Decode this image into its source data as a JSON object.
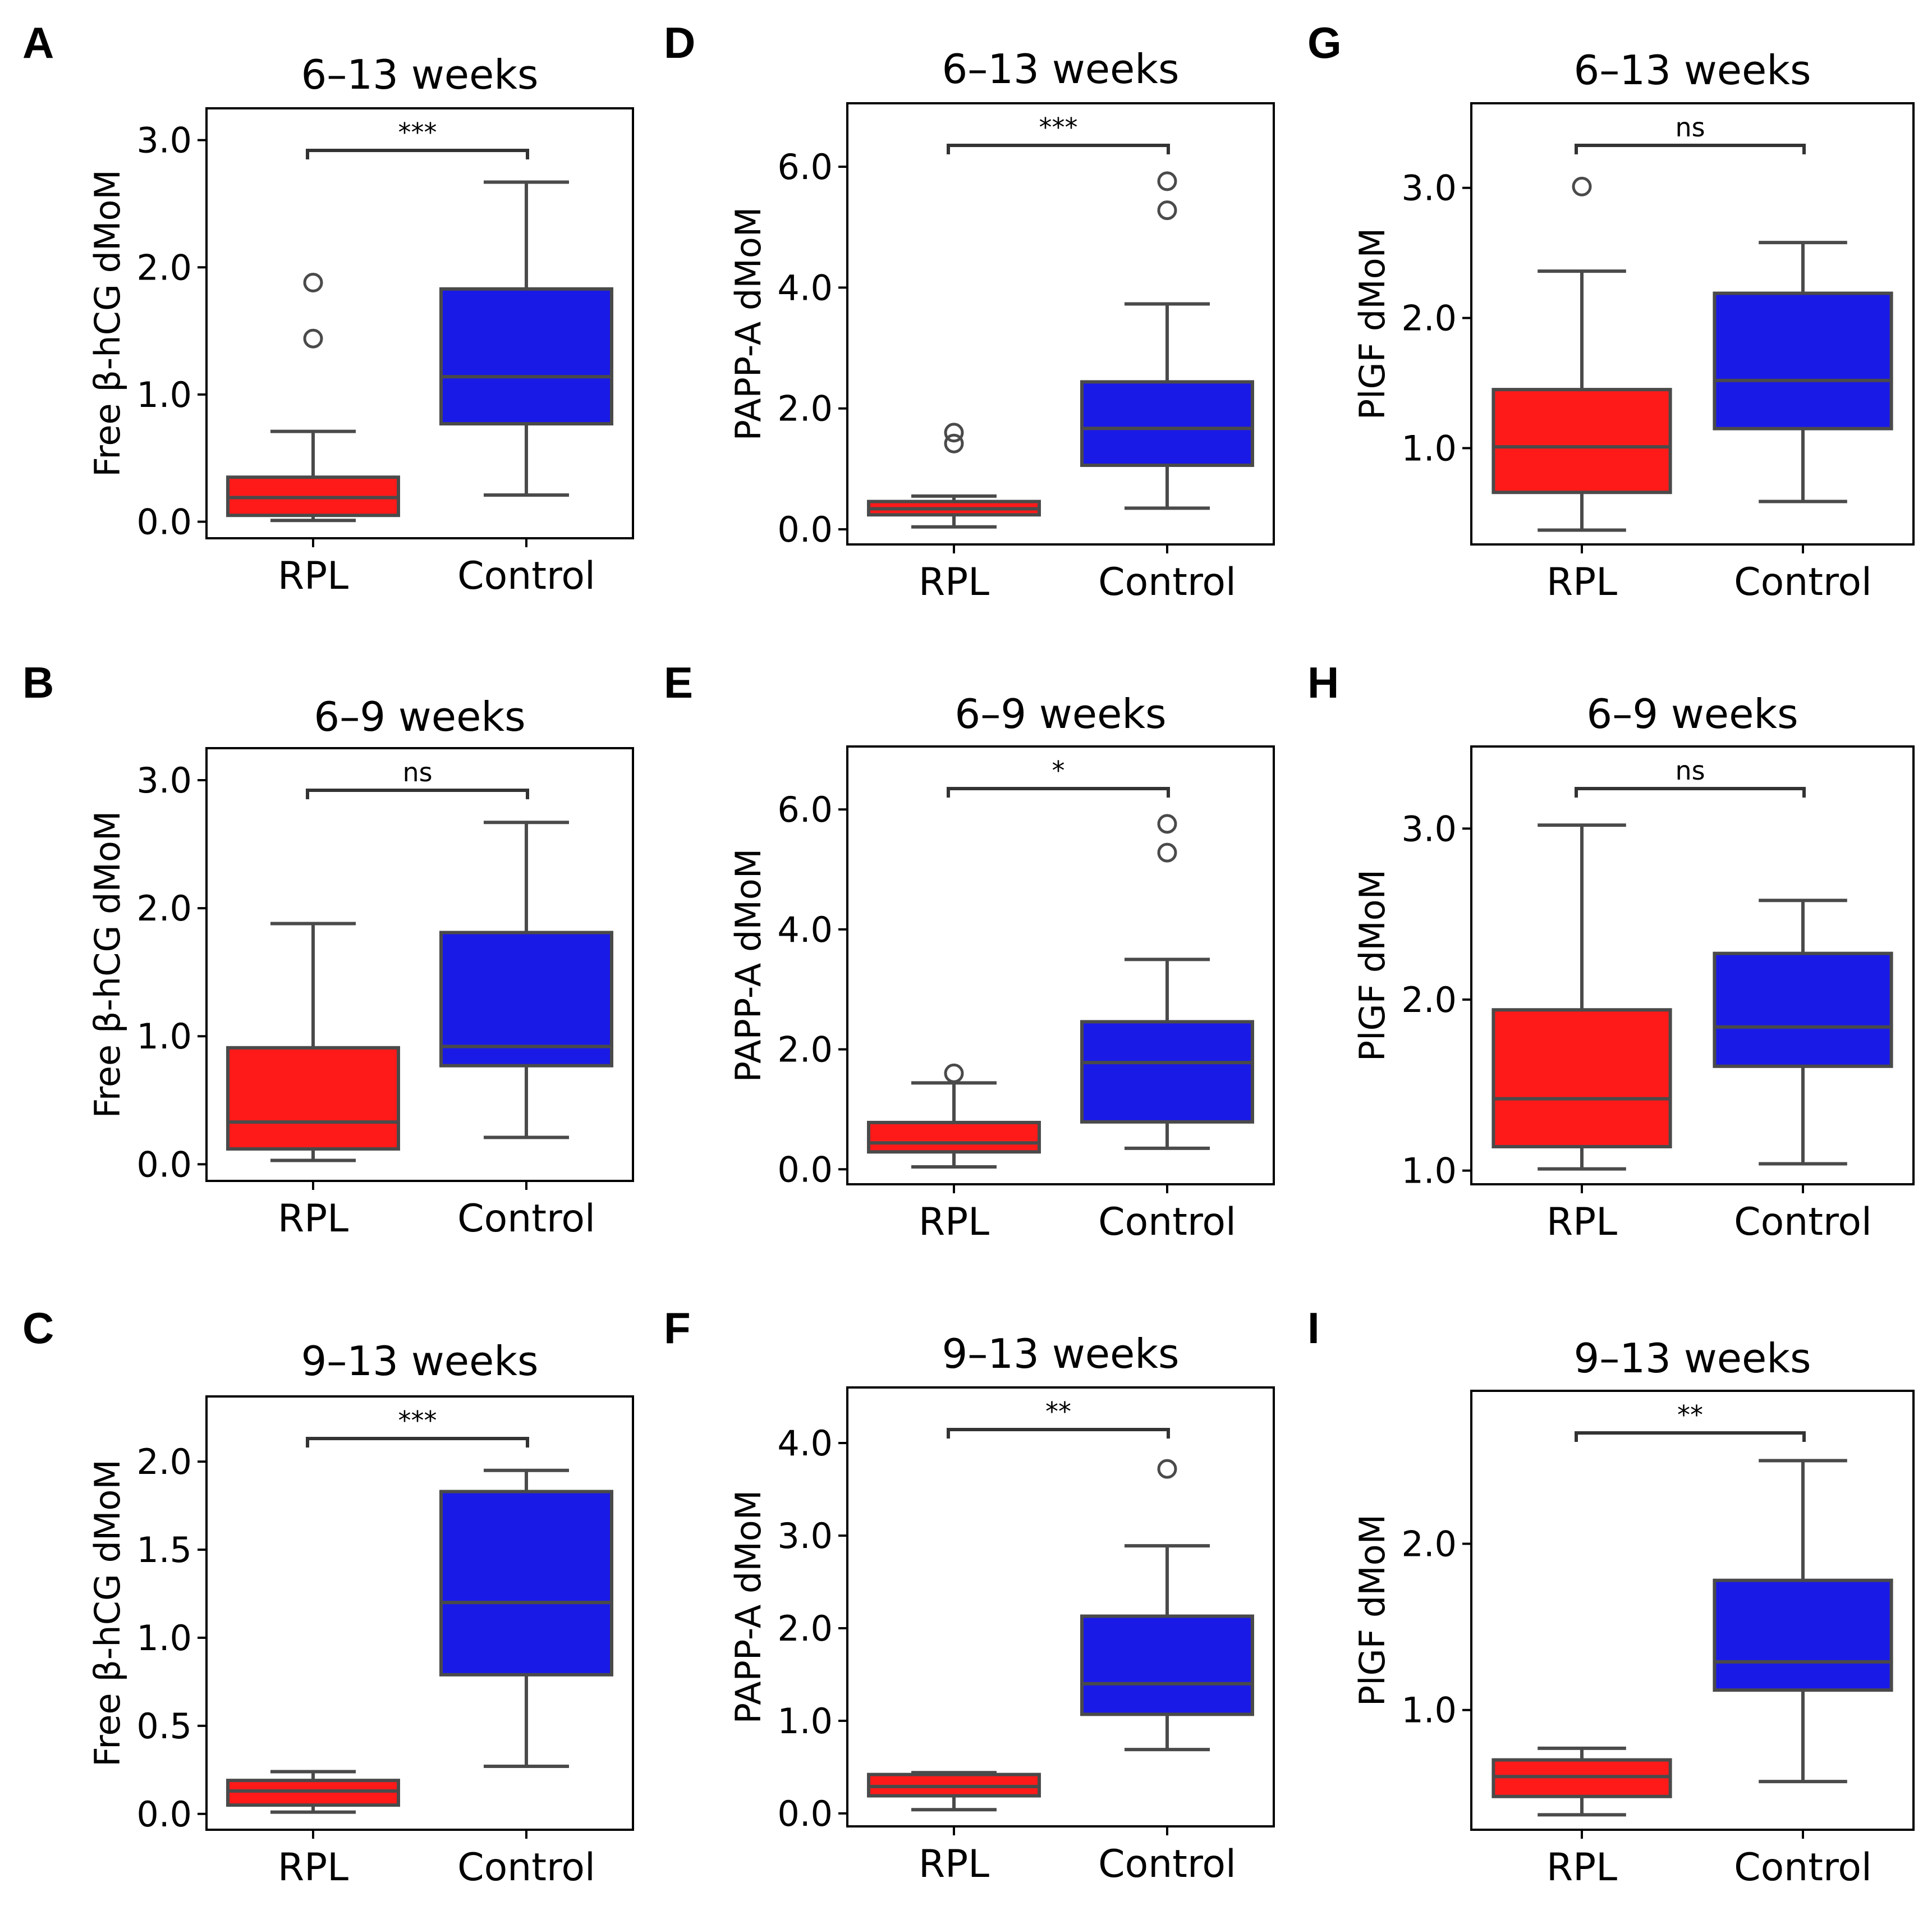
{
  "colors": {
    "rpl": "#ff1a1a",
    "control": "#1a1ae6",
    "line": "#4a4a4a"
  },
  "chart_data": [
    {
      "panel": "A",
      "type": "box",
      "title": "6–13 weeks",
      "ylabel": "Free β-hCG dMoM",
      "ylim": [
        -0.13,
        3.25
      ],
      "yticks": [
        0.0,
        1.0,
        2.0,
        3.0
      ],
      "ytick_labels": [
        "0.0",
        "1.0",
        "2.0",
        "3.0"
      ],
      "categories": [
        "RPL",
        "Control"
      ],
      "significance": "***",
      "boxes": [
        {
          "whislo": 0.01,
          "q1": 0.05,
          "med": 0.19,
          "q3": 0.35,
          "whishi": 0.71,
          "fliers": [
            1.44,
            1.88
          ]
        },
        {
          "whislo": 0.21,
          "q1": 0.77,
          "med": 1.14,
          "q3": 1.83,
          "whishi": 2.67,
          "fliers": []
        }
      ]
    },
    {
      "panel": "B",
      "type": "box",
      "title": "6–9 weeks",
      "ylabel": "Free β-hCG dMoM",
      "ylim": [
        -0.13,
        3.25
      ],
      "yticks": [
        0.0,
        1.0,
        2.0,
        3.0
      ],
      "ytick_labels": [
        "0.0",
        "1.0",
        "2.0",
        "3.0"
      ],
      "categories": [
        "RPL",
        "Control"
      ],
      "significance": "ns",
      "boxes": [
        {
          "whislo": 0.03,
          "q1": 0.12,
          "med": 0.33,
          "q3": 0.91,
          "whishi": 1.88,
          "fliers": []
        },
        {
          "whislo": 0.21,
          "q1": 0.77,
          "med": 0.92,
          "q3": 1.81,
          "whishi": 2.67,
          "fliers": []
        }
      ]
    },
    {
      "panel": "C",
      "type": "box",
      "title": "9–13 weeks",
      "ylabel": "Free β-hCG dMoM",
      "ylim": [
        -0.09,
        2.37
      ],
      "yticks": [
        0.0,
        0.5,
        1.0,
        1.5,
        2.0
      ],
      "ytick_labels": [
        "0.0",
        "0.5",
        "1.0",
        "1.5",
        "2.0"
      ],
      "categories": [
        "RPL",
        "Control"
      ],
      "significance": "***",
      "boxes": [
        {
          "whislo": 0.01,
          "q1": 0.05,
          "med": 0.13,
          "q3": 0.19,
          "whishi": 0.24,
          "fliers": []
        },
        {
          "whislo": 0.27,
          "q1": 0.79,
          "med": 1.2,
          "q3": 1.83,
          "whishi": 1.95,
          "fliers": []
        }
      ]
    },
    {
      "panel": "D",
      "type": "box",
      "title": "6–13 weeks",
      "ylabel": "PAPP-A dMoM",
      "ylim": [
        -0.25,
        7.05
      ],
      "yticks": [
        0.0,
        2.0,
        4.0,
        6.0
      ],
      "ytick_labels": [
        "0.0",
        "2.0",
        "4.0",
        "6.0"
      ],
      "categories": [
        "RPL",
        "Control"
      ],
      "significance": "***",
      "boxes": [
        {
          "whislo": 0.04,
          "q1": 0.24,
          "med": 0.34,
          "q3": 0.46,
          "whishi": 0.55,
          "fliers": [
            1.42,
            1.6
          ]
        },
        {
          "whislo": 0.35,
          "q1": 1.06,
          "med": 1.67,
          "q3": 2.44,
          "whishi": 3.73,
          "fliers": [
            5.28,
            5.76
          ]
        }
      ]
    },
    {
      "panel": "E",
      "type": "box",
      "title": "6–9 weeks",
      "ylabel": "PAPP-A dMoM",
      "ylim": [
        -0.25,
        7.05
      ],
      "yticks": [
        0.0,
        2.0,
        4.0,
        6.0
      ],
      "ytick_labels": [
        "0.0",
        "2.0",
        "4.0",
        "6.0"
      ],
      "categories": [
        "RPL",
        "Control"
      ],
      "significance": "*",
      "boxes": [
        {
          "whislo": 0.04,
          "q1": 0.29,
          "med": 0.44,
          "q3": 0.78,
          "whishi": 1.44,
          "fliers": [
            1.6
          ]
        },
        {
          "whislo": 0.35,
          "q1": 0.79,
          "med": 1.78,
          "q3": 2.46,
          "whishi": 3.5,
          "fliers": [
            5.28,
            5.76
          ]
        }
      ]
    },
    {
      "panel": "F",
      "type": "box",
      "title": "9–13 weeks",
      "ylabel": "PAPP-A dMoM",
      "ylim": [
        -0.14,
        4.6
      ],
      "yticks": [
        0.0,
        1.0,
        2.0,
        3.0,
        4.0
      ],
      "ytick_labels": [
        "0.0",
        "1.0",
        "2.0",
        "3.0",
        "4.0"
      ],
      "categories": [
        "RPL",
        "Control"
      ],
      "significance": "**",
      "boxes": [
        {
          "whislo": 0.04,
          "q1": 0.19,
          "med": 0.29,
          "q3": 0.42,
          "whishi": 0.44,
          "fliers": []
        },
        {
          "whislo": 0.69,
          "q1": 1.07,
          "med": 1.4,
          "q3": 2.13,
          "whishi": 2.89,
          "fliers": [
            3.72
          ]
        }
      ]
    },
    {
      "panel": "G",
      "type": "box",
      "title": "6–13 weeks",
      "ylabel": "PlGF dMoM",
      "ylim": [
        0.26,
        3.65
      ],
      "yticks": [
        1.0,
        2.0,
        3.0
      ],
      "ytick_labels": [
        "1.0",
        "2.0",
        "3.0"
      ],
      "categories": [
        "RPL",
        "Control"
      ],
      "significance": "ns",
      "boxes": [
        {
          "whislo": 0.37,
          "q1": 0.66,
          "med": 1.01,
          "q3": 1.45,
          "whishi": 2.36,
          "fliers": [
            3.01
          ]
        },
        {
          "whislo": 0.59,
          "q1": 1.15,
          "med": 1.52,
          "q3": 2.19,
          "whishi": 2.58,
          "fliers": []
        }
      ]
    },
    {
      "panel": "H",
      "type": "box",
      "title": "6–9 weeks",
      "ylabel": "PlGF dMoM",
      "ylim": [
        0.92,
        3.48
      ],
      "yticks": [
        1.0,
        2.0,
        3.0
      ],
      "ytick_labels": [
        "1.0",
        "2.0",
        "3.0"
      ],
      "categories": [
        "RPL",
        "Control"
      ],
      "significance": "ns",
      "boxes": [
        {
          "whislo": 1.01,
          "q1": 1.14,
          "med": 1.42,
          "q3": 1.94,
          "whishi": 3.02,
          "fliers": []
        },
        {
          "whislo": 1.04,
          "q1": 1.61,
          "med": 1.84,
          "q3": 2.27,
          "whishi": 2.58,
          "fliers": []
        }
      ]
    },
    {
      "panel": "I",
      "type": "box",
      "title": "9–13 weeks",
      "ylabel": "PlGF dMoM",
      "ylim": [
        0.28,
        2.92
      ],
      "yticks": [
        1.0,
        2.0
      ],
      "ytick_labels": [
        "1.0",
        "2.0"
      ],
      "categories": [
        "RPL",
        "Control"
      ],
      "significance": "**",
      "boxes": [
        {
          "whislo": 0.37,
          "q1": 0.48,
          "med": 0.6,
          "q3": 0.7,
          "whishi": 0.77,
          "fliers": []
        },
        {
          "whislo": 0.57,
          "q1": 1.12,
          "med": 1.29,
          "q3": 1.78,
          "whishi": 2.5,
          "fliers": []
        }
      ]
    }
  ]
}
